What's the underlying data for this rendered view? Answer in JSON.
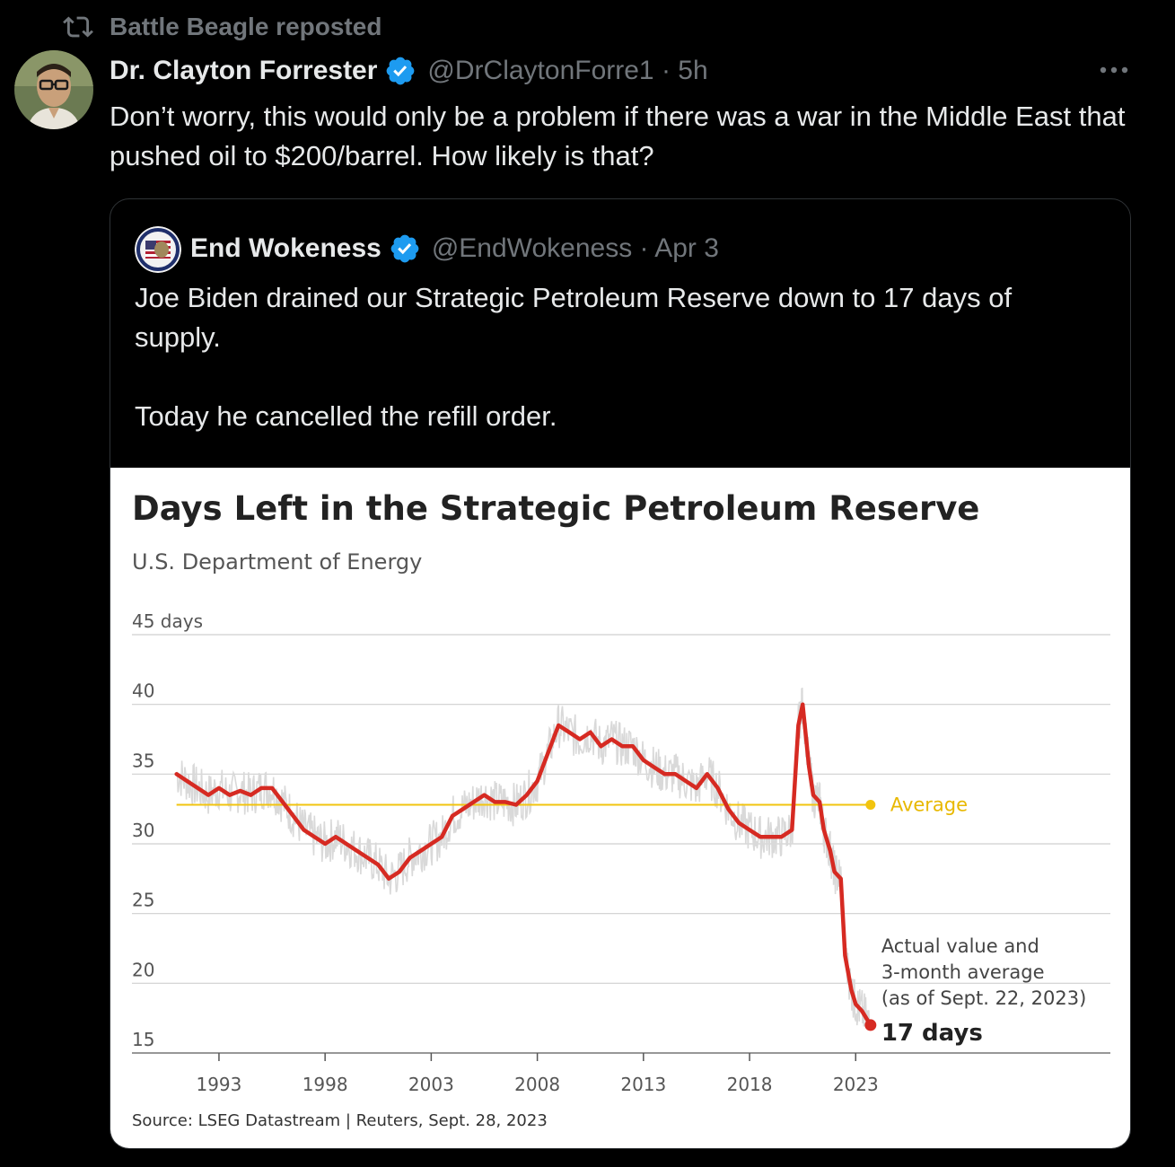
{
  "repost": {
    "text": "Battle Beagle reposted",
    "icon": "repost-icon"
  },
  "tweet": {
    "author_name": "Dr. Clayton Forrester",
    "handle_time": "@DrClaytonForre1 · 5h",
    "text": "Don’t worry, this would only be a problem if there was a war in the Middle East that pushed oil to $200/barrel. How likely is that?"
  },
  "quoted": {
    "author_name": "End Wokeness",
    "handle_time": "@EndWokeness · Apr 3",
    "text_line1": "Joe Biden drained our Strategic Petroleum Reserve down to 17 days of supply.",
    "text_line2": "Today he cancelled the refill order."
  },
  "colors": {
    "accent": "#1d9bf0",
    "line": "#d62a22",
    "average": "#f2c40f",
    "raw": "#d9d9d9"
  },
  "chart_data": {
    "type": "line",
    "title": "Days Left in the Strategic Petroleum Reserve",
    "subtitle": "U.S. Department of Energy",
    "source": "Source: LSEG Datastream | Reuters, Sept. 28, 2023",
    "ylim": [
      15,
      45
    ],
    "xlim": [
      1988.9,
      2035
    ],
    "y_ticks": [
      {
        "value": 45,
        "label": "45 days"
      },
      {
        "value": 40,
        "label": "40"
      },
      {
        "value": 35,
        "label": "35"
      },
      {
        "value": 30,
        "label": "30"
      },
      {
        "value": 25,
        "label": "25"
      },
      {
        "value": 20,
        "label": "20"
      },
      {
        "value": 15,
        "label": "15"
      }
    ],
    "x_ticks": [
      1993,
      1998,
      2003,
      2008,
      2013,
      2018,
      2023
    ],
    "average": {
      "value": 32.8,
      "label": "Average",
      "from": 1991,
      "to": 2023.7
    },
    "annotation": {
      "lines": [
        "Actual value and",
        "3-month average",
        "(as of Sept. 22, 2023)"
      ],
      "value_label": "17 days"
    },
    "series": [
      {
        "x": [
          1991.0,
          1991.5,
          1992.0,
          1992.5,
          1993.0,
          1993.5,
          1994.0,
          1994.5,
          1995.0,
          1995.5,
          1996.0,
          1996.5,
          1997.0,
          1997.5,
          1998.0,
          1998.5,
          1999.0,
          1999.5,
          2000.0,
          2000.5,
          2001.0,
          2001.5,
          2002.0,
          2002.5,
          2003.0,
          2003.5,
          2004.0,
          2004.5,
          2005.0,
          2005.5,
          2006.0,
          2006.5,
          2007.0,
          2007.5,
          2008.0,
          2008.5,
          2009.0,
          2009.5,
          2010.0,
          2010.5,
          2011.0,
          2011.5,
          2012.0,
          2012.5,
          2013.0,
          2013.5,
          2014.0,
          2014.5,
          2015.0,
          2015.5,
          2016.0,
          2016.5,
          2017.0,
          2017.5,
          2018.0,
          2018.5,
          2019.0,
          2019.5,
          2020.0,
          2020.3,
          2020.5,
          2020.8,
          2021.0,
          2021.3,
          2021.5,
          2021.8,
          2022.0,
          2022.3,
          2022.5,
          2022.8,
          2023.0,
          2023.3,
          2023.7
        ],
        "y": [
          35.0,
          34.5,
          34.0,
          33.5,
          34.0,
          33.5,
          33.8,
          33.5,
          34.0,
          34.0,
          33.0,
          32.0,
          31.0,
          30.5,
          30.0,
          30.5,
          30.0,
          29.5,
          29.0,
          28.5,
          27.5,
          28.0,
          29.0,
          29.5,
          30.0,
          30.5,
          32.0,
          32.5,
          33.0,
          33.5,
          33.0,
          33.0,
          32.8,
          33.5,
          34.5,
          36.5,
          38.5,
          38.0,
          37.5,
          38.0,
          37.0,
          37.5,
          37.0,
          37.0,
          36.0,
          35.5,
          35.0,
          35.0,
          34.5,
          34.0,
          35.0,
          34.0,
          32.5,
          31.5,
          31.0,
          30.5,
          30.5,
          30.5,
          31.0,
          38.5,
          40.0,
          35.5,
          33.5,
          33.0,
          31.0,
          29.5,
          28.0,
          27.5,
          22.0,
          19.5,
          18.5,
          18.0,
          17.0
        ]
      }
    ]
  }
}
